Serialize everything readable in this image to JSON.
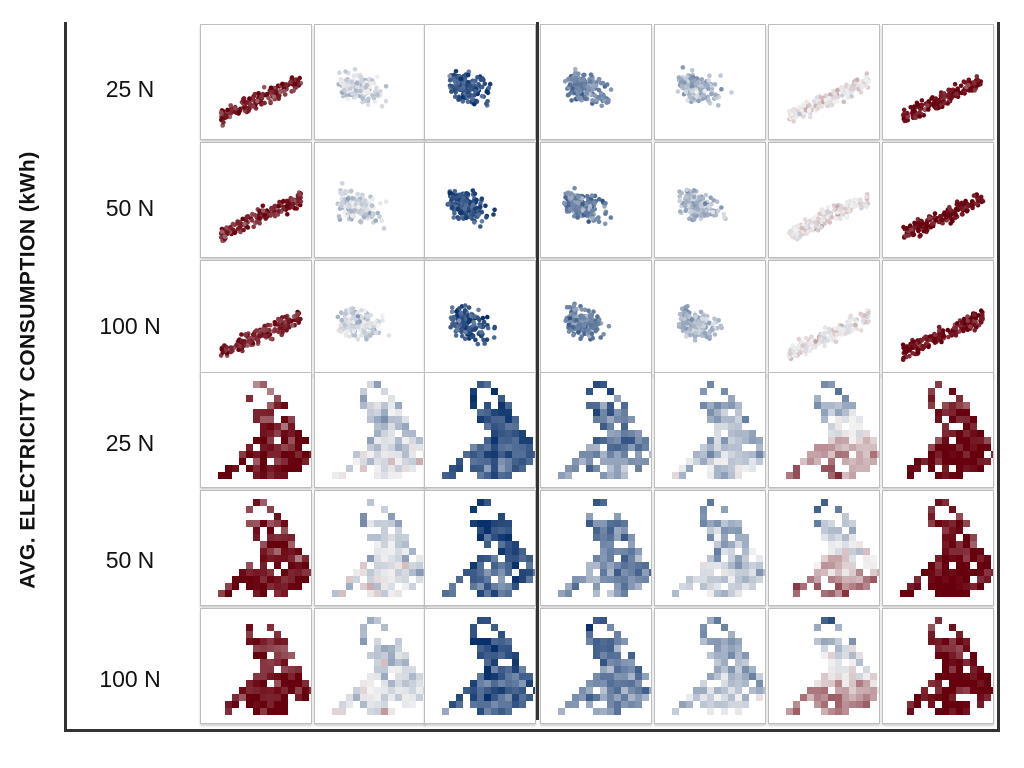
{
  "chart_data": {
    "type": "scatter",
    "ylabel": "AVG. ELECTRICITY CONSUMPTION (kWh)",
    "row_labels": [
      "25 N",
      "50 N",
      "100 N",
      "25 N",
      "50 N",
      "100 N"
    ],
    "row_kinds": [
      "scatter",
      "scatter",
      "scatter",
      "map",
      "map",
      "map"
    ],
    "columns": 7,
    "column_bias": [
      0.85,
      -0.15,
      -0.8,
      -0.55,
      -0.3,
      0.05,
      0.95
    ],
    "colors": {
      "diverging_low": "#08306b",
      "diverging_mid": "#f2f2f2",
      "diverging_high": "#67000d"
    }
  }
}
